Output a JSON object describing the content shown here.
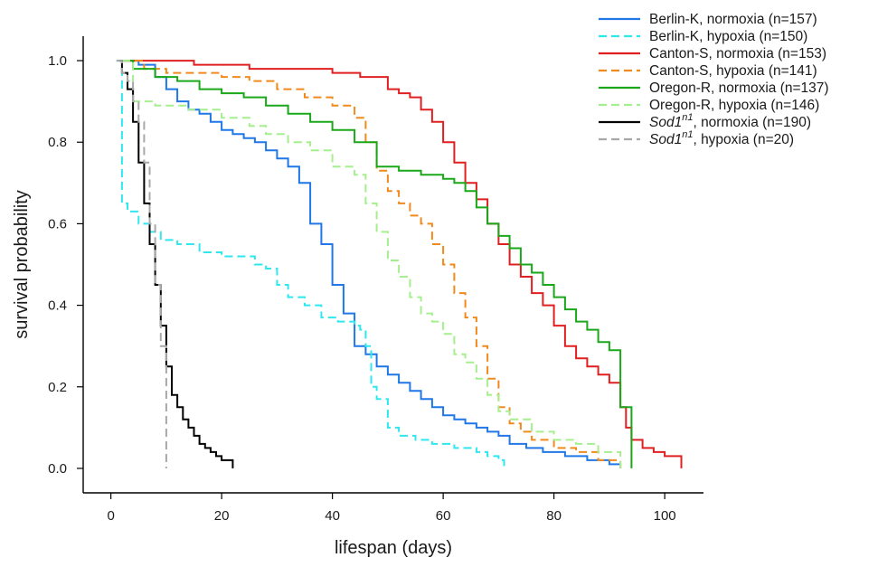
{
  "chart_data": {
    "type": "line",
    "step": true,
    "xlabel": "lifespan (days)",
    "ylabel": "survival probability",
    "xlim": [
      -5,
      107
    ],
    "ylim": [
      -0.06,
      1.06
    ],
    "x_ticks": [
      "0",
      "20",
      "40",
      "60",
      "80",
      "100"
    ],
    "x_tick_values": [
      0,
      20,
      40,
      60,
      80,
      100
    ],
    "y_ticks": [
      "0.0",
      "0.2",
      "0.4",
      "0.6",
      "0.8",
      "1.0"
    ],
    "y_tick_values": [
      0.0,
      0.2,
      0.4,
      0.6,
      0.8,
      1.0
    ],
    "grid": false,
    "legend_position": "top-right",
    "series": [
      {
        "name_parts": [
          "Berlin-K, normoxia (n=157)"
        ],
        "color": "#1f77e8",
        "dash": "solid",
        "x": [
          2,
          5,
          8,
          10,
          12,
          14,
          16,
          18,
          20,
          22,
          24,
          26,
          28,
          30,
          32,
          34,
          36,
          38,
          40,
          42,
          44,
          46,
          48,
          50,
          52,
          54,
          56,
          58,
          60,
          62,
          64,
          66,
          68,
          70,
          72,
          75,
          78,
          82,
          86,
          90,
          92
        ],
        "y": [
          1.0,
          0.99,
          0.96,
          0.93,
          0.9,
          0.88,
          0.87,
          0.85,
          0.83,
          0.82,
          0.81,
          0.8,
          0.78,
          0.76,
          0.74,
          0.7,
          0.6,
          0.55,
          0.45,
          0.38,
          0.3,
          0.28,
          0.25,
          0.23,
          0.21,
          0.19,
          0.17,
          0.15,
          0.13,
          0.12,
          0.11,
          0.1,
          0.09,
          0.08,
          0.06,
          0.05,
          0.04,
          0.03,
          0.02,
          0.01,
          0.0
        ]
      },
      {
        "name_parts": [
          "Berlin-K, hypoxia (n=150)"
        ],
        "color": "#2ee8f0",
        "dash": "dashed",
        "x": [
          1,
          2,
          3,
          5,
          7,
          9,
          12,
          16,
          20,
          24,
          26,
          28,
          30,
          32,
          35,
          38,
          41,
          44,
          45,
          46,
          47,
          48,
          50,
          52,
          55,
          58,
          62,
          66,
          68,
          70,
          71
        ],
        "y": [
          1.0,
          0.65,
          0.63,
          0.6,
          0.58,
          0.56,
          0.55,
          0.53,
          0.52,
          0.52,
          0.5,
          0.49,
          0.45,
          0.42,
          0.4,
          0.37,
          0.36,
          0.35,
          0.34,
          0.3,
          0.2,
          0.17,
          0.1,
          0.08,
          0.07,
          0.06,
          0.05,
          0.04,
          0.03,
          0.02,
          0.0
        ]
      },
      {
        "name_parts": [
          "Canton-S, normoxia (n=153)"
        ],
        "color": "#e02020",
        "dash": "solid",
        "x": [
          2,
          10,
          15,
          20,
          25,
          30,
          35,
          40,
          45,
          50,
          52,
          54,
          56,
          58,
          60,
          62,
          64,
          66,
          68,
          70,
          72,
          74,
          76,
          78,
          80,
          82,
          84,
          86,
          88,
          90,
          92,
          93,
          94,
          96,
          98,
          100,
          103
        ],
        "y": [
          1.0,
          1.0,
          0.99,
          0.99,
          0.98,
          0.98,
          0.98,
          0.97,
          0.96,
          0.93,
          0.92,
          0.91,
          0.88,
          0.85,
          0.8,
          0.75,
          0.7,
          0.66,
          0.6,
          0.55,
          0.5,
          0.47,
          0.43,
          0.4,
          0.35,
          0.3,
          0.27,
          0.25,
          0.23,
          0.21,
          0.15,
          0.1,
          0.07,
          0.05,
          0.04,
          0.03,
          0.0
        ]
      },
      {
        "name_parts": [
          "Canton-S, hypoxia (n=141)"
        ],
        "color": "#f08a1c",
        "dash": "dashed",
        "x": [
          2,
          6,
          10,
          15,
          20,
          25,
          30,
          35,
          40,
          44,
          46,
          48,
          50,
          52,
          54,
          56,
          58,
          60,
          62,
          64,
          66,
          68,
          70,
          72,
          74,
          76,
          80,
          84,
          88,
          92
        ],
        "y": [
          1.0,
          0.98,
          0.97,
          0.97,
          0.96,
          0.95,
          0.93,
          0.91,
          0.89,
          0.86,
          0.8,
          0.73,
          0.68,
          0.65,
          0.62,
          0.6,
          0.55,
          0.5,
          0.43,
          0.37,
          0.3,
          0.22,
          0.15,
          0.11,
          0.09,
          0.07,
          0.05,
          0.04,
          0.02,
          0.0
        ]
      },
      {
        "name_parts": [
          "Oregon-R, normoxia (n=137)"
        ],
        "color": "#1aa81a",
        "dash": "solid",
        "x": [
          2,
          4,
          8,
          12,
          16,
          20,
          24,
          28,
          32,
          36,
          40,
          44,
          48,
          52,
          56,
          60,
          62,
          64,
          66,
          68,
          70,
          72,
          74,
          76,
          78,
          80,
          82,
          84,
          86,
          88,
          90,
          92,
          94
        ],
        "y": [
          1.0,
          0.98,
          0.96,
          0.95,
          0.93,
          0.92,
          0.91,
          0.89,
          0.87,
          0.85,
          0.83,
          0.8,
          0.74,
          0.73,
          0.72,
          0.71,
          0.7,
          0.68,
          0.64,
          0.6,
          0.57,
          0.54,
          0.5,
          0.48,
          0.45,
          0.42,
          0.39,
          0.36,
          0.34,
          0.31,
          0.29,
          0.15,
          0.0
        ]
      },
      {
        "name_parts": [
          "Oregon-R, hypoxia (n=146)"
        ],
        "color": "#a6ef8e",
        "dash": "dashed",
        "x": [
          2,
          4,
          8,
          14,
          20,
          25,
          28,
          32,
          36,
          40,
          44,
          46,
          48,
          50,
          52,
          54,
          56,
          58,
          60,
          62,
          64,
          66,
          68,
          70,
          72,
          76,
          80,
          84,
          88,
          92
        ],
        "y": [
          1.0,
          0.9,
          0.89,
          0.88,
          0.86,
          0.84,
          0.82,
          0.8,
          0.78,
          0.74,
          0.72,
          0.65,
          0.58,
          0.51,
          0.47,
          0.42,
          0.38,
          0.36,
          0.33,
          0.28,
          0.26,
          0.22,
          0.18,
          0.14,
          0.12,
          0.09,
          0.07,
          0.06,
          0.04,
          0.0
        ]
      },
      {
        "name_parts": [
          "Sod1",
          "n1",
          ", normoxia (n=190)"
        ],
        "color": "#000000",
        "dash": "solid",
        "x": [
          1.5,
          2,
          3,
          4,
          5,
          6,
          7,
          8,
          9,
          10,
          11,
          12,
          13,
          14,
          15,
          16,
          17,
          18,
          19,
          20,
          22
        ],
        "y": [
          1.0,
          0.97,
          0.93,
          0.85,
          0.75,
          0.65,
          0.55,
          0.45,
          0.35,
          0.25,
          0.18,
          0.15,
          0.12,
          0.1,
          0.08,
          0.06,
          0.05,
          0.04,
          0.03,
          0.02,
          0.0
        ]
      },
      {
        "name_parts": [
          "Sod1",
          "n1",
          ", hypoxia (n=20)"
        ],
        "color": "#a8a8a8",
        "dash": "dashed",
        "x": [
          1,
          2,
          3,
          4,
          5,
          6,
          7,
          8,
          9,
          10
        ],
        "y": [
          1.0,
          0.97,
          0.95,
          0.9,
          0.85,
          0.75,
          0.6,
          0.45,
          0.3,
          0.0
        ]
      }
    ]
  }
}
